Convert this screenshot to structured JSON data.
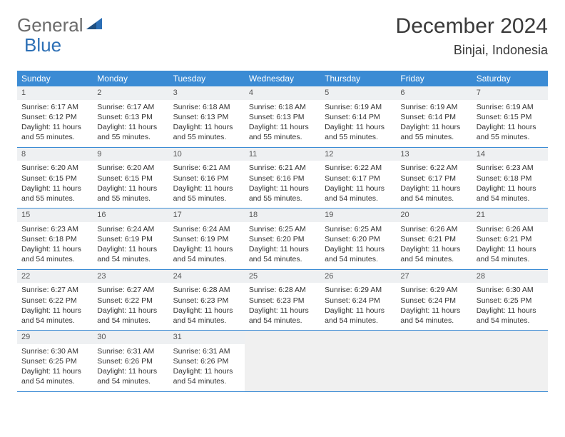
{
  "brand": {
    "part1": "General",
    "part2": "Blue"
  },
  "title": "December 2024",
  "location": "Binjai, Indonesia",
  "colors": {
    "header_bg": "#3b8bd4",
    "header_text": "#ffffff",
    "daynum_bg": "#eef0f2",
    "border": "#3b8bd4",
    "empty_bg": "#f0f0f0"
  },
  "weekdays": [
    "Sunday",
    "Monday",
    "Tuesday",
    "Wednesday",
    "Thursday",
    "Friday",
    "Saturday"
  ],
  "weeks": [
    [
      {
        "n": "1",
        "sr": "Sunrise: 6:17 AM",
        "ss": "Sunset: 6:12 PM",
        "dl": "Daylight: 11 hours and 55 minutes."
      },
      {
        "n": "2",
        "sr": "Sunrise: 6:17 AM",
        "ss": "Sunset: 6:13 PM",
        "dl": "Daylight: 11 hours and 55 minutes."
      },
      {
        "n": "3",
        "sr": "Sunrise: 6:18 AM",
        "ss": "Sunset: 6:13 PM",
        "dl": "Daylight: 11 hours and 55 minutes."
      },
      {
        "n": "4",
        "sr": "Sunrise: 6:18 AM",
        "ss": "Sunset: 6:13 PM",
        "dl": "Daylight: 11 hours and 55 minutes."
      },
      {
        "n": "5",
        "sr": "Sunrise: 6:19 AM",
        "ss": "Sunset: 6:14 PM",
        "dl": "Daylight: 11 hours and 55 minutes."
      },
      {
        "n": "6",
        "sr": "Sunrise: 6:19 AM",
        "ss": "Sunset: 6:14 PM",
        "dl": "Daylight: 11 hours and 55 minutes."
      },
      {
        "n": "7",
        "sr": "Sunrise: 6:19 AM",
        "ss": "Sunset: 6:15 PM",
        "dl": "Daylight: 11 hours and 55 minutes."
      }
    ],
    [
      {
        "n": "8",
        "sr": "Sunrise: 6:20 AM",
        "ss": "Sunset: 6:15 PM",
        "dl": "Daylight: 11 hours and 55 minutes."
      },
      {
        "n": "9",
        "sr": "Sunrise: 6:20 AM",
        "ss": "Sunset: 6:15 PM",
        "dl": "Daylight: 11 hours and 55 minutes."
      },
      {
        "n": "10",
        "sr": "Sunrise: 6:21 AM",
        "ss": "Sunset: 6:16 PM",
        "dl": "Daylight: 11 hours and 55 minutes."
      },
      {
        "n": "11",
        "sr": "Sunrise: 6:21 AM",
        "ss": "Sunset: 6:16 PM",
        "dl": "Daylight: 11 hours and 55 minutes."
      },
      {
        "n": "12",
        "sr": "Sunrise: 6:22 AM",
        "ss": "Sunset: 6:17 PM",
        "dl": "Daylight: 11 hours and 54 minutes."
      },
      {
        "n": "13",
        "sr": "Sunrise: 6:22 AM",
        "ss": "Sunset: 6:17 PM",
        "dl": "Daylight: 11 hours and 54 minutes."
      },
      {
        "n": "14",
        "sr": "Sunrise: 6:23 AM",
        "ss": "Sunset: 6:18 PM",
        "dl": "Daylight: 11 hours and 54 minutes."
      }
    ],
    [
      {
        "n": "15",
        "sr": "Sunrise: 6:23 AM",
        "ss": "Sunset: 6:18 PM",
        "dl": "Daylight: 11 hours and 54 minutes."
      },
      {
        "n": "16",
        "sr": "Sunrise: 6:24 AM",
        "ss": "Sunset: 6:19 PM",
        "dl": "Daylight: 11 hours and 54 minutes."
      },
      {
        "n": "17",
        "sr": "Sunrise: 6:24 AM",
        "ss": "Sunset: 6:19 PM",
        "dl": "Daylight: 11 hours and 54 minutes."
      },
      {
        "n": "18",
        "sr": "Sunrise: 6:25 AM",
        "ss": "Sunset: 6:20 PM",
        "dl": "Daylight: 11 hours and 54 minutes."
      },
      {
        "n": "19",
        "sr": "Sunrise: 6:25 AM",
        "ss": "Sunset: 6:20 PM",
        "dl": "Daylight: 11 hours and 54 minutes."
      },
      {
        "n": "20",
        "sr": "Sunrise: 6:26 AM",
        "ss": "Sunset: 6:21 PM",
        "dl": "Daylight: 11 hours and 54 minutes."
      },
      {
        "n": "21",
        "sr": "Sunrise: 6:26 AM",
        "ss": "Sunset: 6:21 PM",
        "dl": "Daylight: 11 hours and 54 minutes."
      }
    ],
    [
      {
        "n": "22",
        "sr": "Sunrise: 6:27 AM",
        "ss": "Sunset: 6:22 PM",
        "dl": "Daylight: 11 hours and 54 minutes."
      },
      {
        "n": "23",
        "sr": "Sunrise: 6:27 AM",
        "ss": "Sunset: 6:22 PM",
        "dl": "Daylight: 11 hours and 54 minutes."
      },
      {
        "n": "24",
        "sr": "Sunrise: 6:28 AM",
        "ss": "Sunset: 6:23 PM",
        "dl": "Daylight: 11 hours and 54 minutes."
      },
      {
        "n": "25",
        "sr": "Sunrise: 6:28 AM",
        "ss": "Sunset: 6:23 PM",
        "dl": "Daylight: 11 hours and 54 minutes."
      },
      {
        "n": "26",
        "sr": "Sunrise: 6:29 AM",
        "ss": "Sunset: 6:24 PM",
        "dl": "Daylight: 11 hours and 54 minutes."
      },
      {
        "n": "27",
        "sr": "Sunrise: 6:29 AM",
        "ss": "Sunset: 6:24 PM",
        "dl": "Daylight: 11 hours and 54 minutes."
      },
      {
        "n": "28",
        "sr": "Sunrise: 6:30 AM",
        "ss": "Sunset: 6:25 PM",
        "dl": "Daylight: 11 hours and 54 minutes."
      }
    ],
    [
      {
        "n": "29",
        "sr": "Sunrise: 6:30 AM",
        "ss": "Sunset: 6:25 PM",
        "dl": "Daylight: 11 hours and 54 minutes."
      },
      {
        "n": "30",
        "sr": "Sunrise: 6:31 AM",
        "ss": "Sunset: 6:26 PM",
        "dl": "Daylight: 11 hours and 54 minutes."
      },
      {
        "n": "31",
        "sr": "Sunrise: 6:31 AM",
        "ss": "Sunset: 6:26 PM",
        "dl": "Daylight: 11 hours and 54 minutes."
      },
      null,
      null,
      null,
      null
    ]
  ]
}
